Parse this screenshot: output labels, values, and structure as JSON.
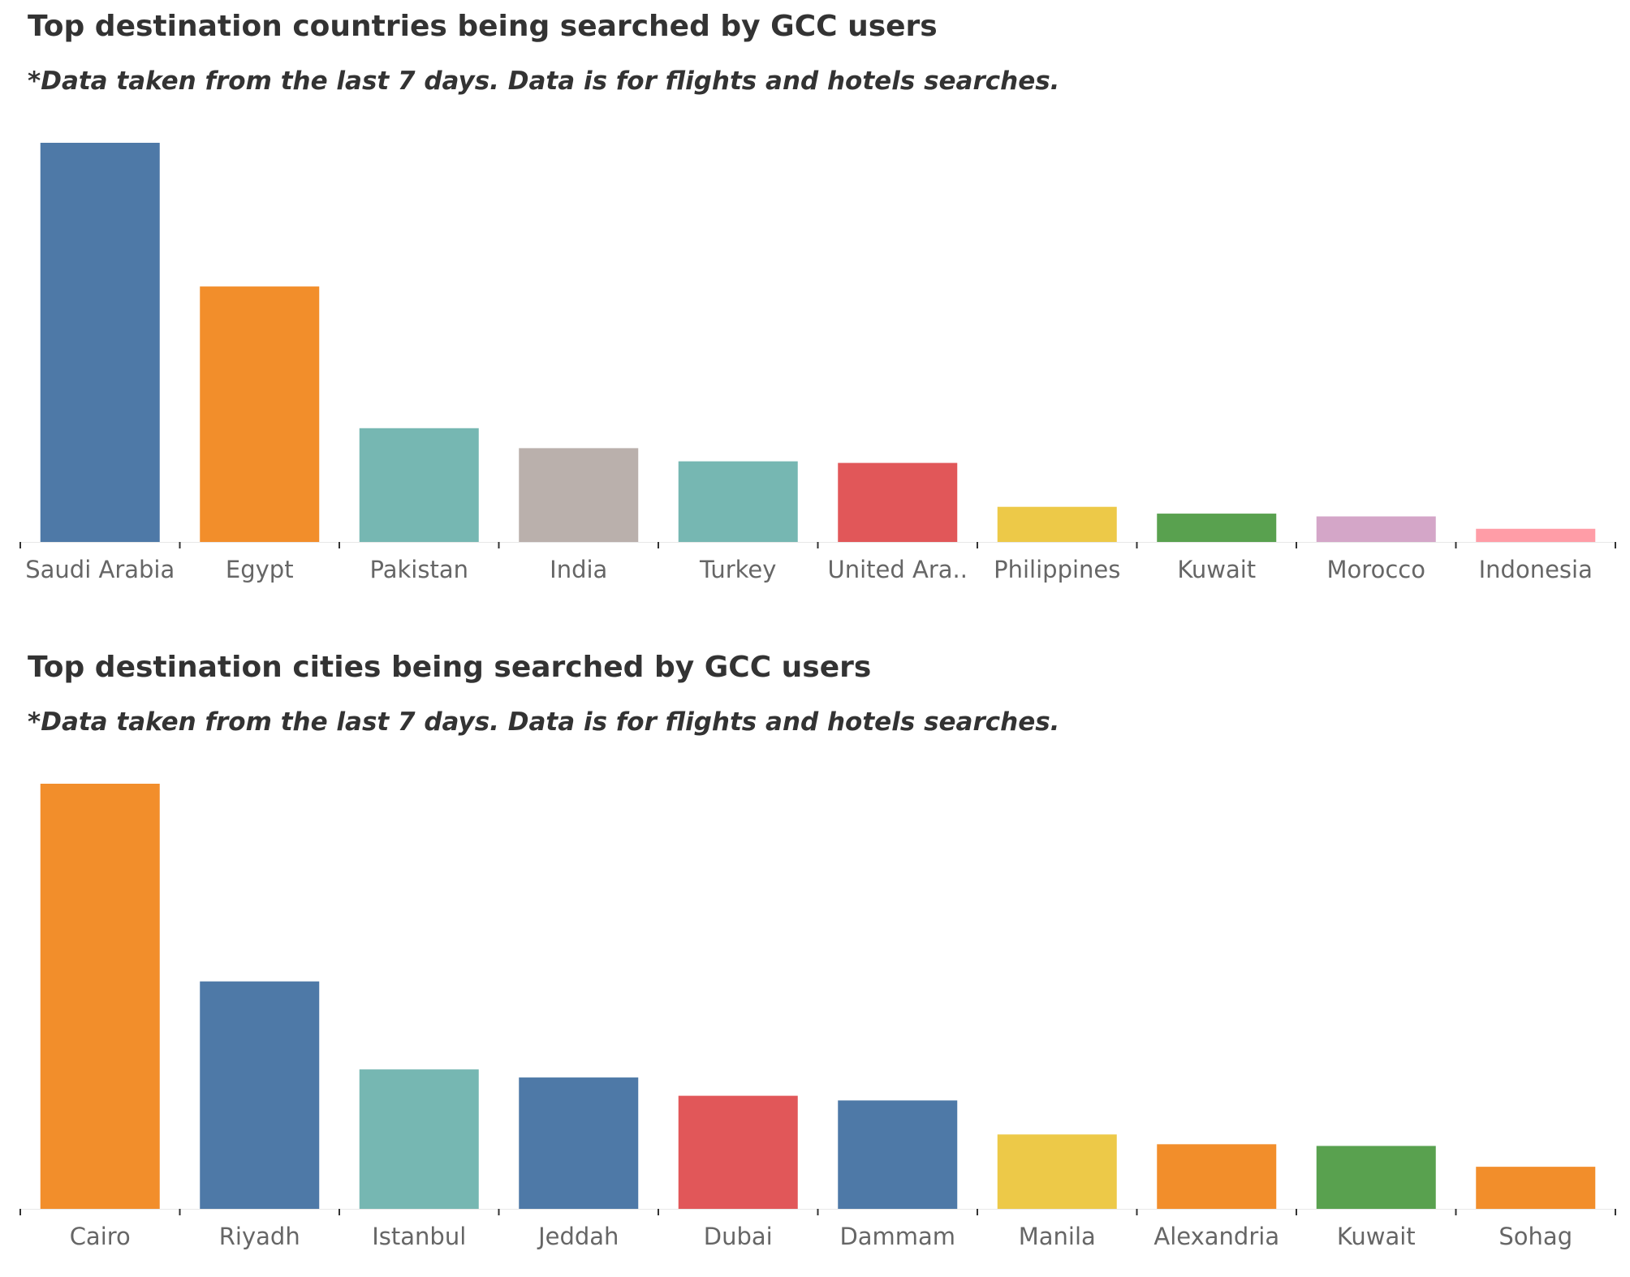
{
  "chart_data": [
    {
      "type": "bar",
      "title": "Top destination countries being searched by GCC users",
      "subtitle": "*Data taken from the last 7 days. Data is for flights and hotels searches.",
      "categories": [
        "Saudi Arabia",
        "Egypt",
        "Pakistan",
        "India",
        "Turkey",
        "United Ara..",
        "Philippines",
        "Kuwait",
        "Morocco",
        "Indonesia"
      ],
      "values": [
        100,
        64,
        28.5,
        23.5,
        20.2,
        19.8,
        8.8,
        7.1,
        6.4,
        3.3
      ],
      "colors": [
        "#4e79a7",
        "#f28e2b",
        "#76b7b2",
        "#bab0ac",
        "#76b7b2",
        "#e15759",
        "#edc948",
        "#59a14f",
        "#d4a6c8",
        "#ff9da7"
      ],
      "xlabel": "",
      "ylabel": "",
      "ylim": [
        0,
        100
      ],
      "grid": false,
      "y_axis_visible": false
    },
    {
      "type": "bar",
      "title": "Top destination cities being searched by GCC users",
      "subtitle": "*Data taken from the last 7 days. Data is for flights and hotels searches.",
      "categories": [
        "Cairo",
        "Riyadh",
        "Istanbul",
        "Jeddah",
        "Dubai",
        "Dammam",
        "Manila",
        "Alexandria",
        "Kuwait",
        "Sohag"
      ],
      "values": [
        100,
        53.5,
        32.8,
        30.9,
        26.6,
        25.5,
        17.5,
        15.2,
        14.8,
        9.9
      ],
      "colors": [
        "#f28e2b",
        "#4e79a7",
        "#76b7b2",
        "#4e79a7",
        "#e15759",
        "#4e79a7",
        "#edc948",
        "#f28e2b",
        "#59a14f",
        "#f28e2b"
      ],
      "xlabel": "",
      "ylabel": "",
      "ylim": [
        0,
        100
      ],
      "grid": false,
      "y_axis_visible": false
    }
  ]
}
